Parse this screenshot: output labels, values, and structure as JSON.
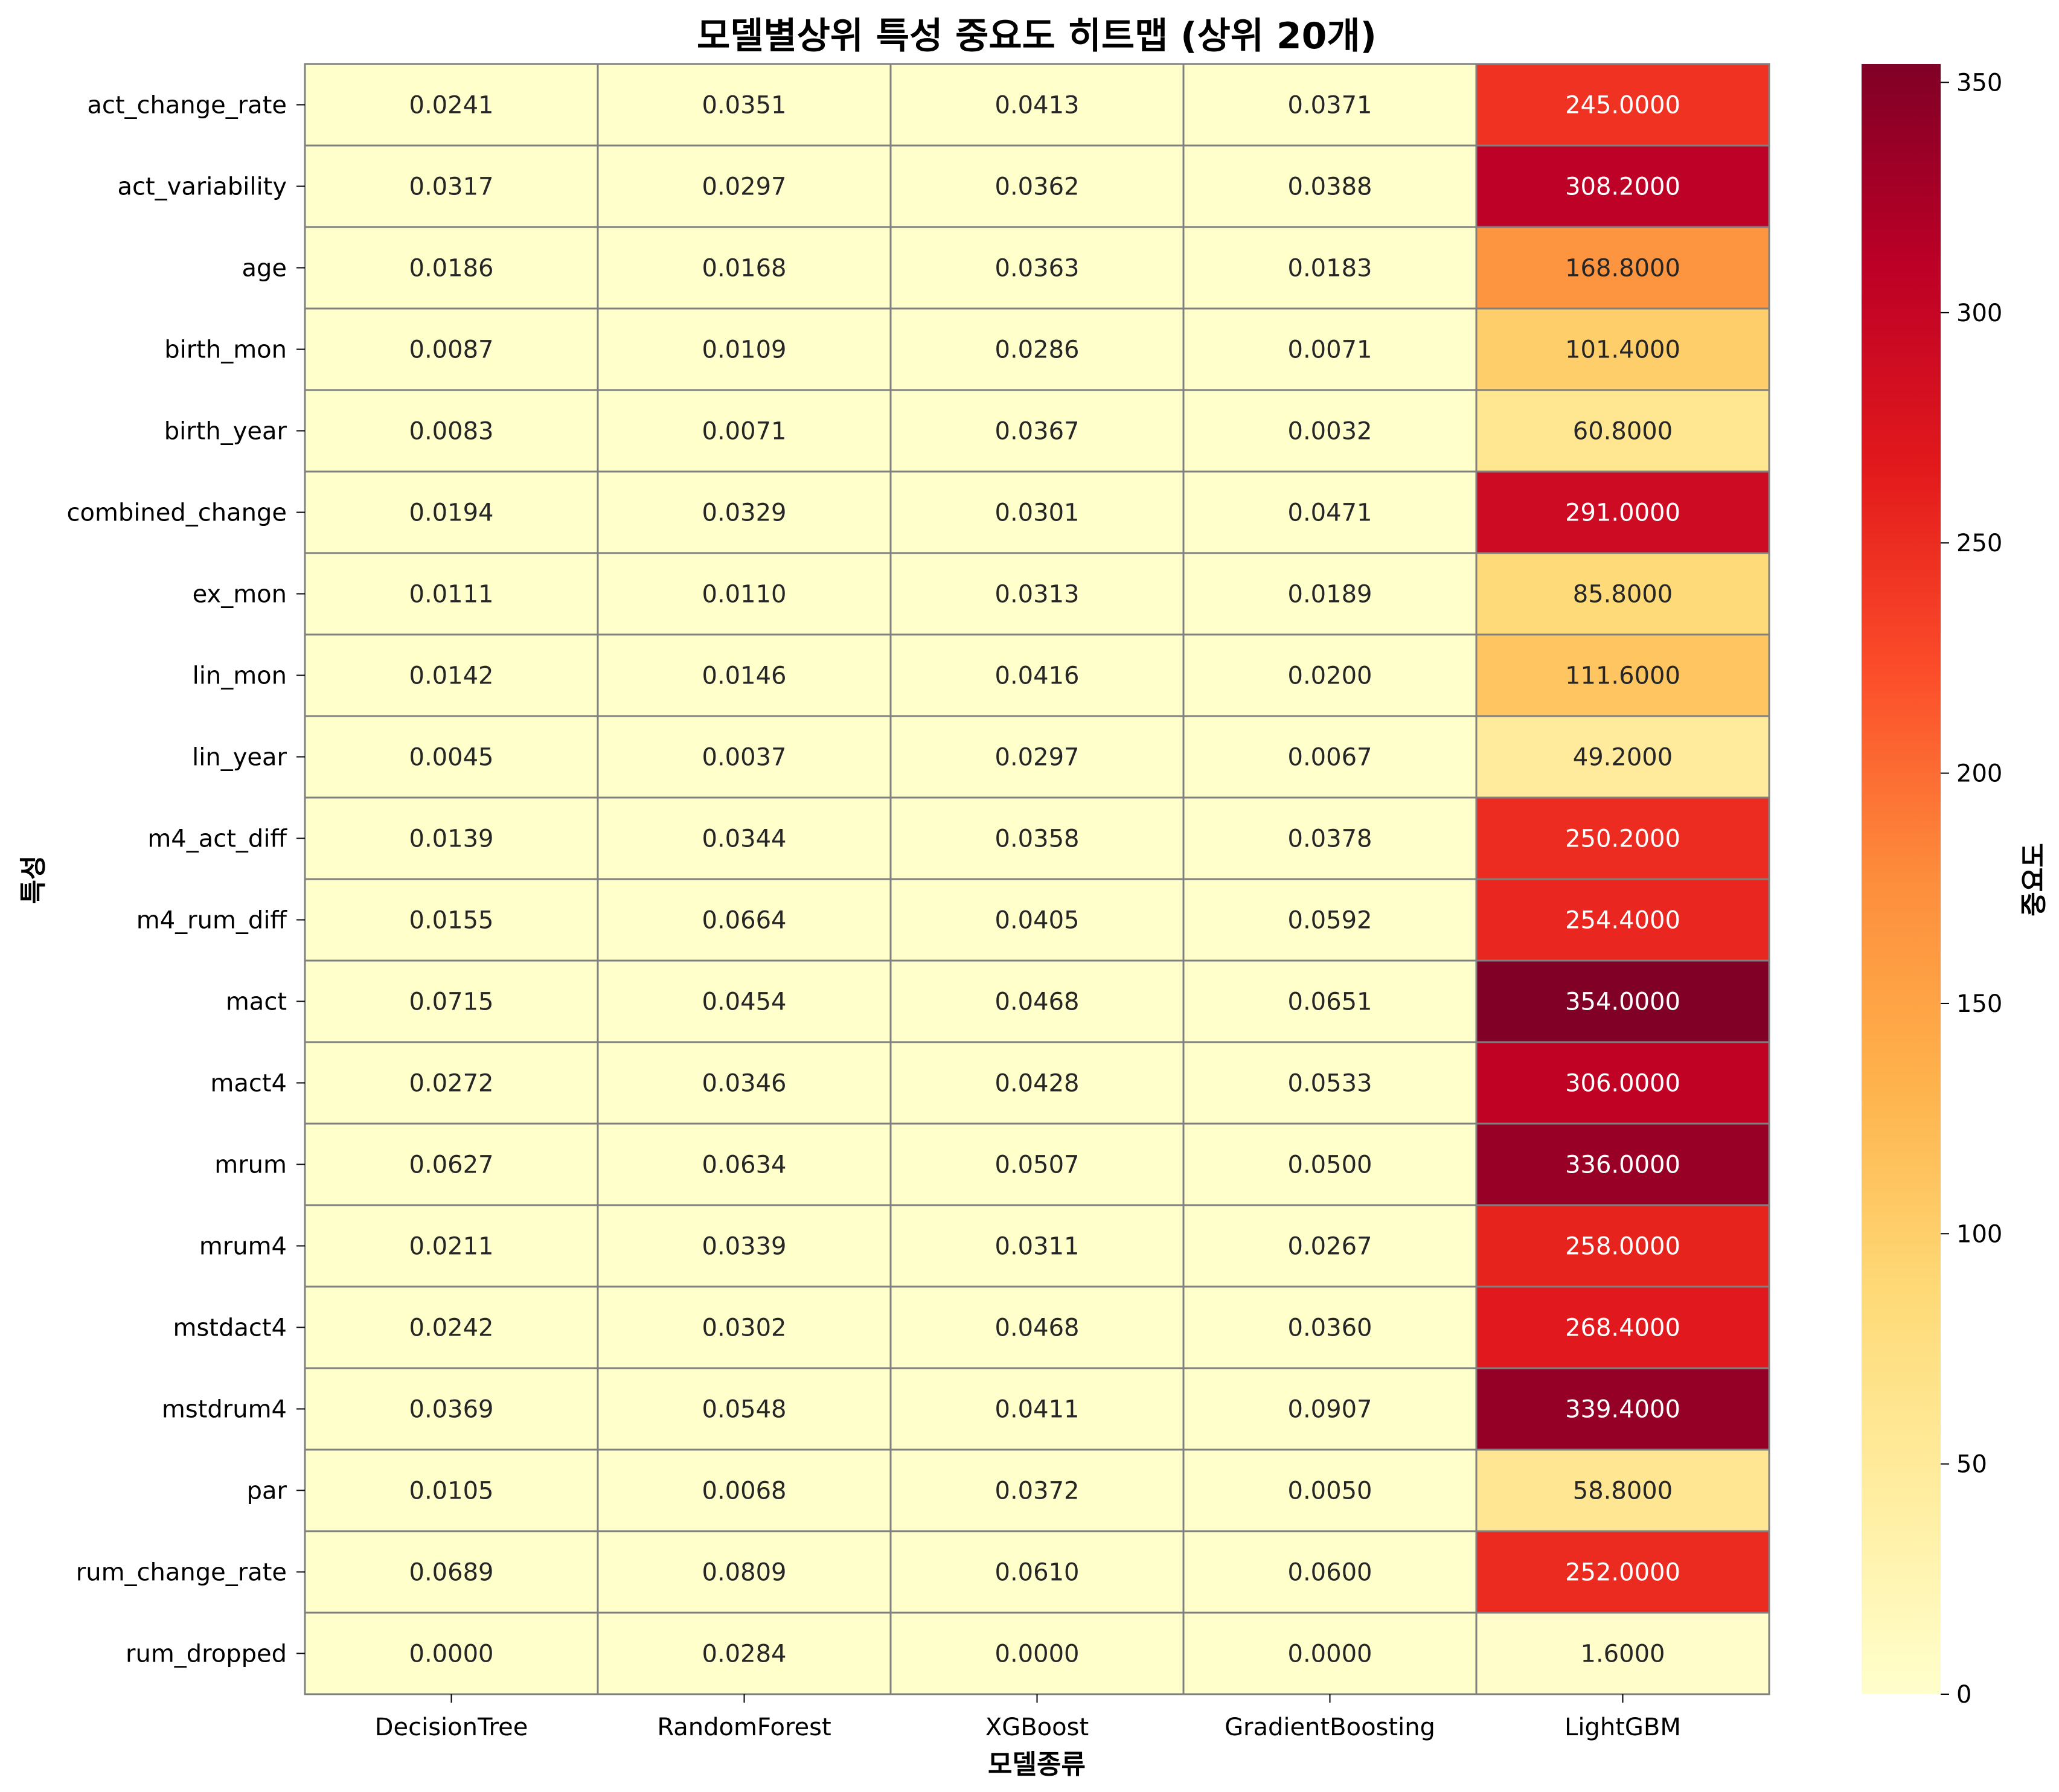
{
  "chart_data": {
    "type": "heatmap",
    "title": "모델별상위 특성 중요도 히트맵 (상위 20개)",
    "xlabel": "모델종류",
    "ylabel": "특성",
    "colorbar_label": "중요도",
    "colormap": "YlOrRd",
    "value_range": [
      0,
      354
    ],
    "colorbar_ticks": [
      "0",
      "50",
      "100",
      "150",
      "200",
      "250",
      "300",
      "350"
    ],
    "columns": [
      "DecisionTree",
      "RandomForest",
      "XGBoost",
      "GradientBoosting",
      "LightGBM"
    ],
    "rows": [
      "act_change_rate",
      "act_variability",
      "age",
      "birth_mon",
      "birth_year",
      "combined_change",
      "ex_mon",
      "lin_mon",
      "lin_year",
      "m4_act_diff",
      "m4_rum_diff",
      "mact",
      "mact4",
      "mrum",
      "mrum4",
      "mstdact4",
      "mstdrum4",
      "par",
      "rum_change_rate",
      "rum_dropped"
    ],
    "values": [
      [
        0.0241,
        0.0351,
        0.0413,
        0.0371,
        245.0
      ],
      [
        0.0317,
        0.0297,
        0.0362,
        0.0388,
        308.2
      ],
      [
        0.0186,
        0.0168,
        0.0363,
        0.0183,
        168.8
      ],
      [
        0.0087,
        0.0109,
        0.0286,
        0.0071,
        101.4
      ],
      [
        0.0083,
        0.0071,
        0.0367,
        0.0032,
        60.8
      ],
      [
        0.0194,
        0.0329,
        0.0301,
        0.0471,
        291.0
      ],
      [
        0.0111,
        0.011,
        0.0313,
        0.0189,
        85.8
      ],
      [
        0.0142,
        0.0146,
        0.0416,
        0.02,
        111.6
      ],
      [
        0.0045,
        0.0037,
        0.0297,
        0.0067,
        49.2
      ],
      [
        0.0139,
        0.0344,
        0.0358,
        0.0378,
        250.2
      ],
      [
        0.0155,
        0.0664,
        0.0405,
        0.0592,
        254.4
      ],
      [
        0.0715,
        0.0454,
        0.0468,
        0.0651,
        354.0
      ],
      [
        0.0272,
        0.0346,
        0.0428,
        0.0533,
        306.0
      ],
      [
        0.0627,
        0.0634,
        0.0507,
        0.05,
        336.0
      ],
      [
        0.0211,
        0.0339,
        0.0311,
        0.0267,
        258.0
      ],
      [
        0.0242,
        0.0302,
        0.0468,
        0.036,
        268.4
      ],
      [
        0.0369,
        0.0548,
        0.0411,
        0.0907,
        339.4
      ],
      [
        0.0105,
        0.0068,
        0.0372,
        0.005,
        58.8
      ],
      [
        0.0689,
        0.0809,
        0.061,
        0.06,
        252.0
      ],
      [
        0.0,
        0.0284,
        0.0,
        0.0,
        1.6
      ]
    ],
    "value_format": "4 decimals"
  }
}
